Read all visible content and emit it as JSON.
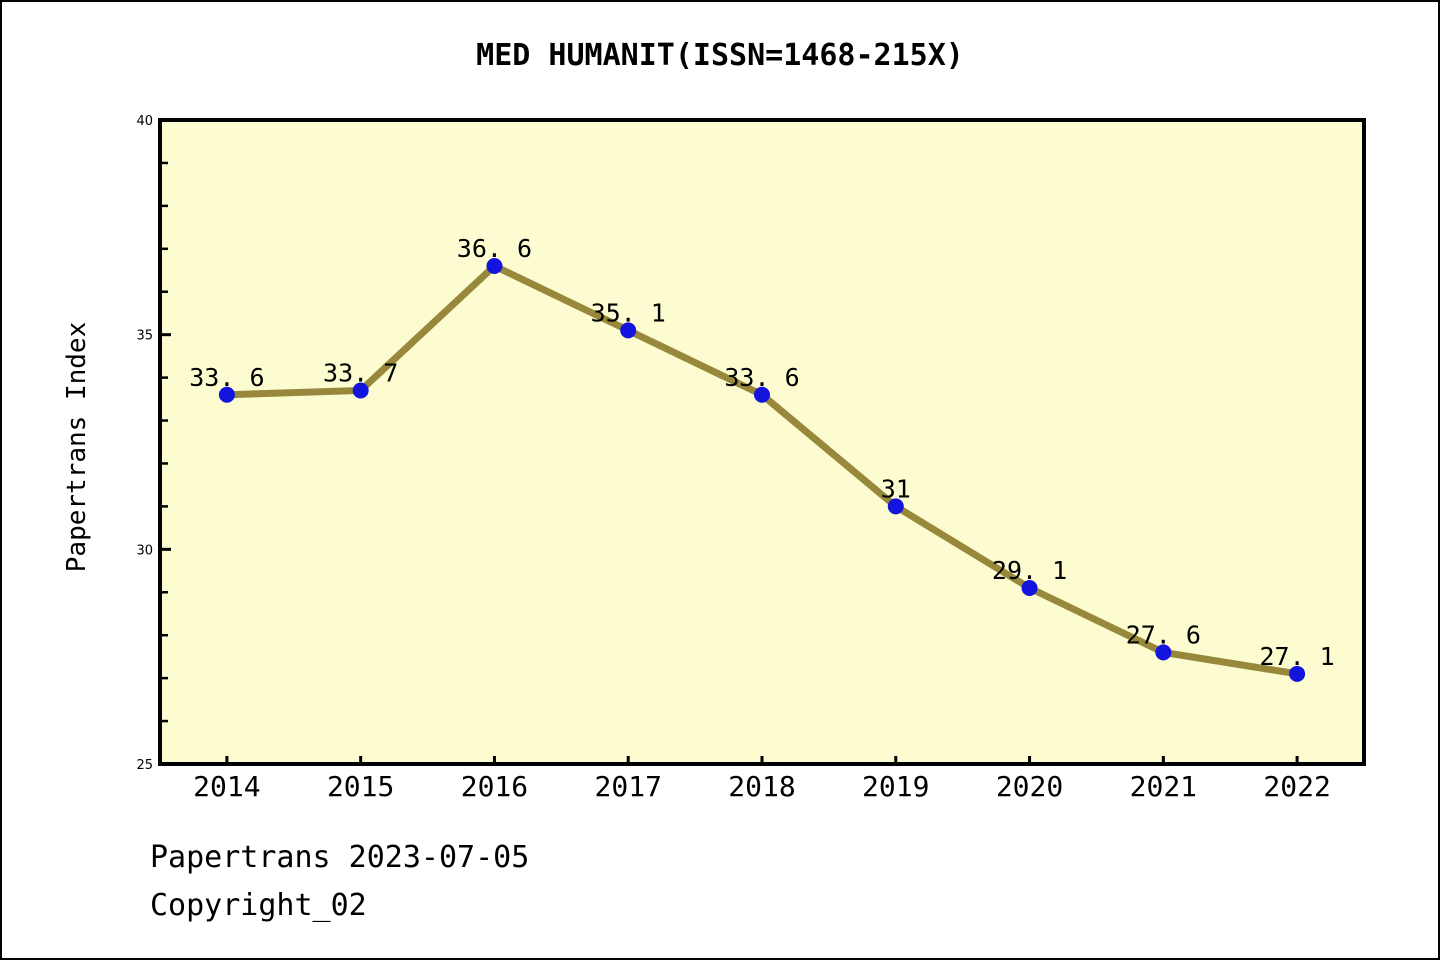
{
  "title": "MED HUMANIT(ISSN=1468-215X)",
  "footer": {
    "line1": "Papertrans 2023-07-05",
    "line2": "Copyright_02"
  },
  "chart_data": {
    "type": "line",
    "title": "MED HUMANIT(ISSN=1468-215X)",
    "x": [
      2014,
      2015,
      2016,
      2017,
      2018,
      2019,
      2020,
      2021,
      2022
    ],
    "x_tick_labels": [
      "2014",
      "2015",
      "2016",
      "2017",
      "2018",
      "2019",
      "2020",
      "2021",
      "2022"
    ],
    "values": [
      33.6,
      33.7,
      36.6,
      35.1,
      33.6,
      31,
      29.1,
      27.6,
      27.1
    ],
    "point_labels": [
      "33. 6",
      "33. 7",
      "36. 6",
      "35. 1",
      "33. 6",
      "31",
      "29. 1",
      "27. 6",
      "27. 1"
    ],
    "xlabel": "",
    "ylabel": "Papertrans Index",
    "xlim": [
      2013.5,
      2022.5
    ],
    "ylim": [
      25,
      40
    ],
    "y_major_ticks": [
      25,
      30,
      35,
      40
    ],
    "y_major_tick_labels": [
      "25",
      "30",
      "35",
      "40"
    ],
    "y_minor_tick_step": 1,
    "grid": false,
    "legend_position": "none",
    "colors": {
      "line": "#97883C",
      "marker": "#1414DF",
      "plot_background": "#FCFCD0",
      "frame": "#000000",
      "text": "#000000"
    }
  }
}
